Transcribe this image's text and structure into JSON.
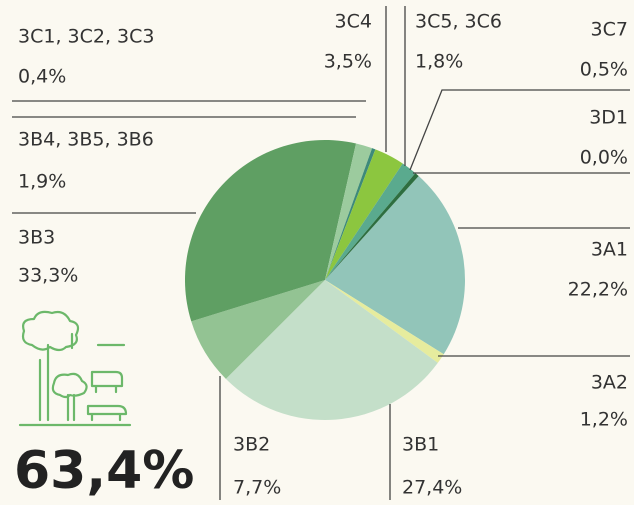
{
  "chart_data": {
    "type": "pie",
    "categories": [
      "3A1",
      "3A2",
      "3B1",
      "3B2",
      "3B3",
      "3B4, 3B5, 3B6",
      "3C1, 3C2, 3C3",
      "3C4",
      "3C5, 3C6",
      "3C7",
      "3D1"
    ],
    "values": [
      22.2,
      1.2,
      27.4,
      7.7,
      33.3,
      1.9,
      0.4,
      3.5,
      1.8,
      0.5,
      0.0
    ],
    "value_labels": [
      "22,2%",
      "1,2%",
      "27,4%",
      "7,7%",
      "33,3%",
      "1,9%",
      "0,4%",
      "3,5%",
      "1,8%",
      "0,5%",
      "0,0%"
    ],
    "colors": [
      "#92c5b9",
      "#e6ec9e",
      "#c4dfc9",
      "#93c393",
      "#5f9f63",
      "#9ccb9e",
      "#3d8a7a",
      "#8cc63f",
      "#5aaa8e",
      "#2e6e40",
      "#1e5030"
    ],
    "highlight": "63,4%"
  }
}
